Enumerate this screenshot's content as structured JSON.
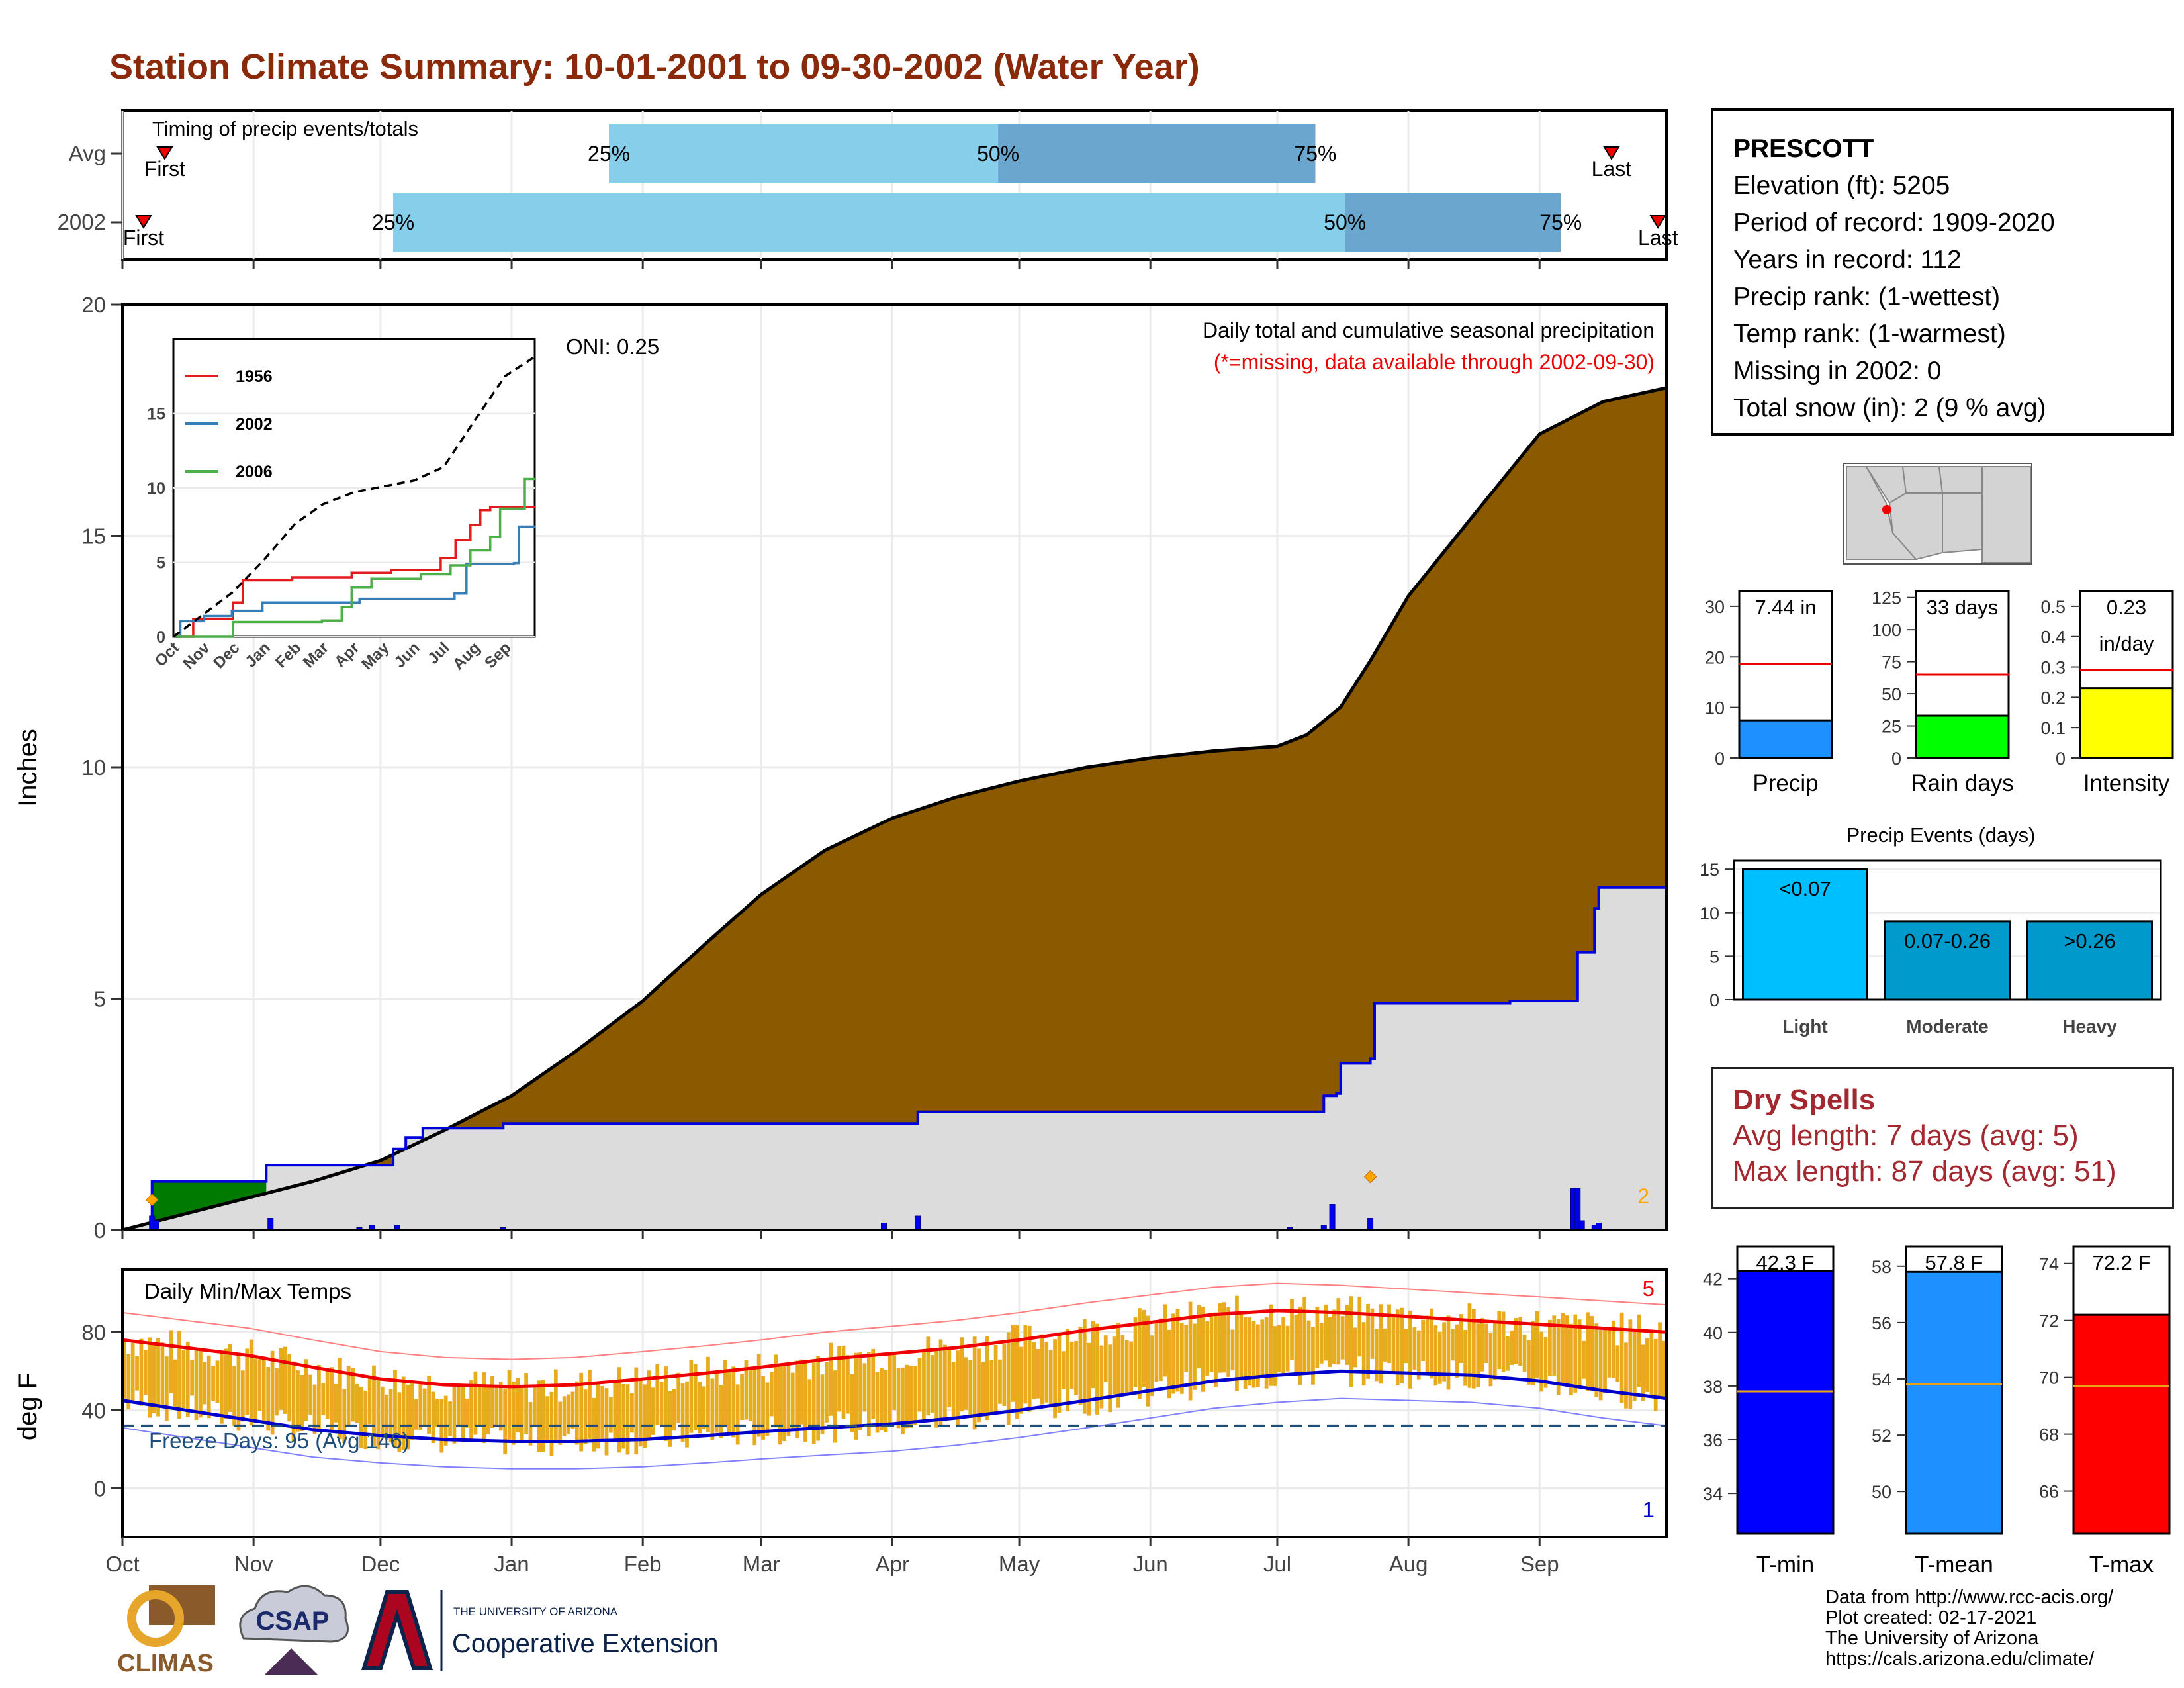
{
  "title": "Station Climate Summary: 10-01-2001 to 09-30-2002 (Water Year)",
  "station": {
    "name": "PRESCOTT",
    "lines": [
      "Elevation (ft): 5205",
      "Period of record: 1909-2020",
      "Years in record: 112",
      "Precip rank:  (1-wettest)",
      "Temp rank:  (1-warmest)",
      "Missing in 2002: 0",
      "Total snow (in): 2 (9 % avg)"
    ]
  },
  "dry_spells": {
    "title": "Dry Spells",
    "avg_length": "Avg length: 7 days (avg: 5)",
    "max_length": "Max length: 87 days (avg: 51)"
  },
  "footer": {
    "lines": [
      "Data from http://www.rcc-acis.org/",
      "Plot created: 02-17-2021",
      "The University of Arizona",
      "https://cals.arizona.edu/climate/"
    ],
    "logos": [
      "CLIMAS",
      "CSAP",
      "THE UNIVERSITY OF ARIZONA",
      "Cooperative Extension"
    ]
  },
  "colors": {
    "title": "#8b2a0a",
    "cumulative_avg_fill": "#8b5a00",
    "cumulative_2002_fill": "#dcdcdc",
    "cumulative_2002_line": "#0000dd",
    "surplus_fill": "#007a00",
    "temp_range_bars": "#e8ab1e",
    "tmax_avg": "#ee0000",
    "tmin_avg": "#0000cc",
    "quartile_light": "#87ceeb",
    "quartile_dark": "#6aa6cd"
  },
  "chart_data": [
    {
      "type": "bar",
      "name": "timing",
      "title": "Timing of precip events/totals",
      "rows": [
        {
          "label": "Avg",
          "first_day": 10,
          "q25_day": 115,
          "q50_day": 207,
          "q75_day": 282,
          "last_day": 352,
          "labels": [
            "First",
            "25%",
            "50%",
            "75%",
            "Last"
          ]
        },
        {
          "label": "2002",
          "first_day": 5,
          "q25_day": 64,
          "q50_day": 289,
          "q75_day": 340,
          "last_day": 363,
          "labels": [
            "First",
            "25%",
            "50%",
            "75%",
            "Last"
          ]
        }
      ]
    },
    {
      "type": "area",
      "name": "cumulative_precip",
      "title": "Daily total and cumulative seasonal precipitation",
      "subtitle": "(*=missing, data available through 2002-09-30)",
      "annotation": "ONI: 0.25",
      "ylabel": "Inches",
      "ylim": [
        0,
        20
      ],
      "yticks": [
        0,
        5,
        10,
        15,
        20
      ],
      "xlim": [
        0,
        365
      ],
      "months": [
        "Oct",
        "Nov",
        "Dec",
        "Jan",
        "Feb",
        "Mar",
        "Apr",
        "May",
        "Jun",
        "Jul",
        "Aug",
        "Sep"
      ],
      "month_days": [
        0,
        31,
        61,
        92,
        123,
        151,
        182,
        212,
        243,
        273,
        304,
        335
      ],
      "avg_cumulative": {
        "x": [
          0,
          15,
          30,
          45,
          61,
          76,
          92,
          107,
          123,
          138,
          151,
          166,
          182,
          197,
          212,
          228,
          243,
          258,
          273,
          280,
          288,
          295,
          304,
          319,
          335,
          350,
          365
        ],
        "y": [
          0,
          0.35,
          0.7,
          1.05,
          1.5,
          2.15,
          2.9,
          3.85,
          4.95,
          6.2,
          7.25,
          8.2,
          8.9,
          9.35,
          9.7,
          10.0,
          10.2,
          10.35,
          10.45,
          10.7,
          11.3,
          12.3,
          13.7,
          15.4,
          17.2,
          17.9,
          18.2
        ]
      },
      "obs_2002_cumulative": {
        "x": [
          0,
          7,
          31,
          34,
          59,
          64,
          67,
          71,
          90,
          180,
          188,
          284,
          287,
          288,
          295,
          296,
          328,
          343,
          344,
          348,
          349,
          365
        ],
        "y": [
          0,
          1.05,
          1.05,
          1.4,
          1.4,
          1.75,
          2.0,
          2.2,
          2.3,
          2.3,
          2.55,
          2.9,
          2.95,
          3.6,
          3.7,
          4.9,
          4.95,
          4.95,
          6.0,
          6.95,
          7.4,
          7.45
        ]
      },
      "daily_precip": {
        "x": [
          7,
          8,
          35,
          56,
          59,
          65,
          90,
          180,
          188,
          276,
          284,
          286,
          295,
          343,
          344,
          345,
          348,
          349
        ],
        "y": [
          0.3,
          0.2,
          0.25,
          0.05,
          0.1,
          0.1,
          0.05,
          0.15,
          0.3,
          0.05,
          0.1,
          0.55,
          0.25,
          0.9,
          0.9,
          0.2,
          0.1,
          0.15
        ]
      },
      "snow_markers": {
        "x": [
          7,
          295
        ],
        "y": [
          0.65,
          1.15
        ]
      },
      "snow_count_label": "2",
      "inset": {
        "ylim": [
          0,
          20
        ],
        "yticks": [
          0,
          5,
          10,
          15
        ],
        "months": [
          "Oct",
          "Nov",
          "Dec",
          "Jan",
          "Feb",
          "Mar",
          "Apr",
          "May",
          "Jun",
          "Jul",
          "Aug",
          "Sep"
        ],
        "series": [
          {
            "name": "1956",
            "x": [
              0,
              20,
              60,
              70,
              120,
              180,
              220,
              255,
              270,
              285,
              300,
              310,
              320,
              340,
              365
            ],
            "y": [
              0,
              1.2,
              2.3,
              3.8,
              4.0,
              4.3,
              4.5,
              4.5,
              5.3,
              6.5,
              7.5,
              8.5,
              8.7,
              8.7,
              8.7
            ]
          },
          {
            "name": "2002",
            "x": [
              0,
              7,
              31,
              59,
              90,
              180,
              188,
              284,
              296,
              344,
              349,
              365
            ],
            "y": [
              0,
              1.05,
              1.4,
              1.75,
              2.3,
              2.3,
              2.55,
              2.9,
              4.9,
              4.95,
              7.4,
              7.45
            ]
          },
          {
            "name": "2006",
            "x": [
              0,
              60,
              150,
              170,
              180,
              200,
              250,
              280,
              300,
              320,
              330,
              355,
              365
            ],
            "y": [
              0,
              1.0,
              1.1,
              2.0,
              3.3,
              3.9,
              4.2,
              4.8,
              5.8,
              6.7,
              8.6,
              10.6,
              10.6
            ]
          }
        ],
        "avg": {
          "x": [
            0,
            30,
            60,
            92,
            123,
            151,
            182,
            212,
            243,
            273,
            304,
            335,
            365
          ],
          "y": [
            0,
            1.5,
            3.0,
            5.2,
            7.6,
            8.9,
            9.7,
            10.1,
            10.5,
            11.4,
            14.5,
            17.5,
            18.8
          ]
        }
      }
    },
    {
      "type": "bar",
      "name": "precip_total",
      "categories": [
        "Precip"
      ],
      "value_label": "7.44 in",
      "values": [
        7.44
      ],
      "average": 18.6,
      "ylim": [
        0,
        33
      ],
      "yticks": [
        0,
        10,
        20,
        30
      ]
    },
    {
      "type": "bar",
      "name": "rain_days",
      "categories": [
        "Rain days"
      ],
      "value_label": "33 days",
      "values": [
        33
      ],
      "average": 65,
      "ylim": [
        0,
        130
      ],
      "yticks": [
        0,
        25,
        50,
        75,
        100,
        125
      ]
    },
    {
      "type": "bar",
      "name": "intensity",
      "categories": [
        "Intensity"
      ],
      "value_label": "0.23",
      "value_unit": "in/day",
      "values": [
        0.23
      ],
      "average": 0.29,
      "ylim": [
        0,
        0.55
      ],
      "yticks": [
        0.0,
        0.1,
        0.2,
        0.3,
        0.4,
        0.5
      ]
    },
    {
      "type": "bar",
      "name": "precip_events",
      "title": "Precip Events (days)",
      "categories": [
        "Light",
        "Moderate",
        "Heavy"
      ],
      "bar_labels": [
        "<0.07",
        "0.07-0.26",
        ">0.26"
      ],
      "values": [
        15,
        9,
        9
      ],
      "ylim": [
        0,
        16
      ],
      "yticks": [
        0,
        5,
        10,
        15
      ]
    },
    {
      "type": "bar",
      "name": "daily_temps",
      "title": "Daily Min/Max Temps",
      "annotation": "Freeze Days: 95 (Avg 146)",
      "ylabel": "deg F",
      "ylim": [
        -25,
        112
      ],
      "yticks": [
        0,
        40,
        80
      ],
      "freeze_line": 32,
      "tmax_avg": {
        "x": [
          0,
          15,
          30,
          45,
          61,
          76,
          92,
          107,
          123,
          138,
          151,
          166,
          182,
          197,
          212,
          228,
          243,
          258,
          273,
          288,
          304,
          319,
          335,
          350,
          365
        ],
        "y": [
          76,
          72,
          68,
          62,
          56,
          53,
          52,
          53,
          56,
          59,
          62,
          66,
          69,
          72,
          76,
          81,
          85,
          89,
          91,
          90,
          88,
          86,
          84,
          82,
          80
        ]
      },
      "tmin_avg": {
        "x": [
          0,
          15,
          30,
          45,
          61,
          76,
          92,
          107,
          123,
          138,
          151,
          166,
          182,
          197,
          212,
          228,
          243,
          258,
          273,
          288,
          304,
          319,
          335,
          350,
          365
        ],
        "y": [
          45,
          40,
          35,
          30,
          27,
          25,
          24,
          24,
          25,
          27,
          29,
          31,
          33,
          36,
          40,
          45,
          50,
          55,
          58,
          60,
          59,
          58,
          55,
          50,
          46
        ]
      },
      "record_max_count": "5",
      "record_min_count": "1"
    },
    {
      "type": "bar",
      "name": "tmin",
      "categories": [
        "T-min"
      ],
      "value_label": "42.3 F",
      "values": [
        42.3
      ],
      "average": 37.8,
      "ylim": [
        32.5,
        43.2
      ],
      "yticks": [
        34,
        36,
        38,
        40,
        42
      ]
    },
    {
      "type": "bar",
      "name": "tmean",
      "categories": [
        "T-mean"
      ],
      "value_label": "57.8 F",
      "values": [
        57.8
      ],
      "average": 53.8,
      "ylim": [
        48.5,
        58.7
      ],
      "yticks": [
        50,
        52,
        54,
        56,
        58
      ]
    },
    {
      "type": "bar",
      "name": "tmax",
      "categories": [
        "T-max"
      ],
      "value_label": "72.2 F",
      "values": [
        72.2
      ],
      "average": 69.7,
      "ylim": [
        64.5,
        74.6
      ],
      "yticks": [
        66,
        68,
        70,
        72,
        74
      ]
    }
  ]
}
